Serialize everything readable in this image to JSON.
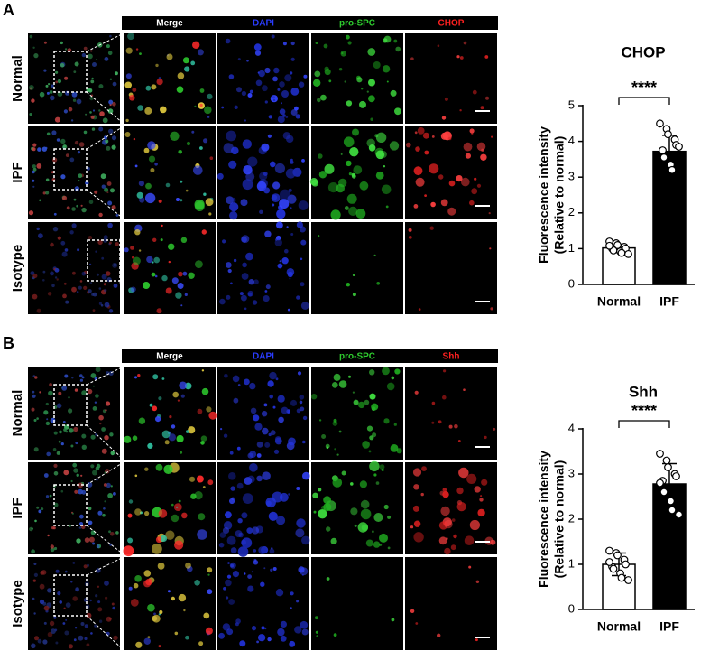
{
  "panels": [
    {
      "label": "A",
      "columns": [
        "Merge",
        "DAPI",
        "pro-SPC",
        "CHOP"
      ],
      "column_colors": [
        "#ffffff",
        "#2a3cff",
        "#2ecc2e",
        "#ff2020"
      ],
      "rows": [
        "Normal",
        "IPF",
        "Isotype"
      ]
    },
    {
      "label": "B",
      "columns": [
        "Merge",
        "DAPI",
        "pro-SPC",
        "Shh"
      ],
      "column_colors": [
        "#ffffff",
        "#2a3cff",
        "#2ecc2e",
        "#ff2020"
      ],
      "rows": [
        "Normal",
        "IPF",
        "Isotype"
      ]
    }
  ],
  "chart_data": [
    {
      "type": "bar",
      "title": "CHOP",
      "ylabel": [
        "Fluorescence intensity",
        "(Relative to normal)"
      ],
      "categories": [
        "Normal",
        "IPF"
      ],
      "values": [
        1.02,
        3.72
      ],
      "errors": [
        0.1,
        0.45
      ],
      "colors": [
        "#ffffff",
        "#000000"
      ],
      "points": [
        [
          1.2,
          1.15,
          1.1,
          1.05,
          1.0,
          1.0,
          0.95,
          0.92,
          0.88,
          0.85,
          1.08
        ],
        [
          4.5,
          4.35,
          4.2,
          4.05,
          3.9,
          3.75,
          3.55,
          3.35,
          3.2,
          3.85
        ]
      ],
      "annotation": "****",
      "ylim": [
        0,
        5
      ],
      "yticks": [
        0,
        1,
        2,
        3,
        4,
        5
      ]
    },
    {
      "type": "bar",
      "title": "Shh",
      "ylabel": [
        "Fluorescence intensity",
        "(Relative to normal)"
      ],
      "categories": [
        "Normal",
        "IPF"
      ],
      "values": [
        1.0,
        2.78
      ],
      "errors": [
        0.25,
        0.45
      ],
      "colors": [
        "#ffffff",
        "#000000"
      ],
      "points": [
        [
          1.3,
          1.25,
          1.2,
          1.1,
          1.0,
          0.95,
          0.9,
          0.8,
          0.7,
          0.65,
          1.05
        ],
        [
          3.45,
          3.3,
          3.15,
          3.0,
          2.95,
          2.85,
          2.6,
          2.4,
          2.2,
          2.1,
          2.8
        ]
      ],
      "annotation": "****",
      "ylim": [
        0,
        4
      ],
      "yticks": [
        0,
        1,
        2,
        3,
        4
      ]
    }
  ]
}
